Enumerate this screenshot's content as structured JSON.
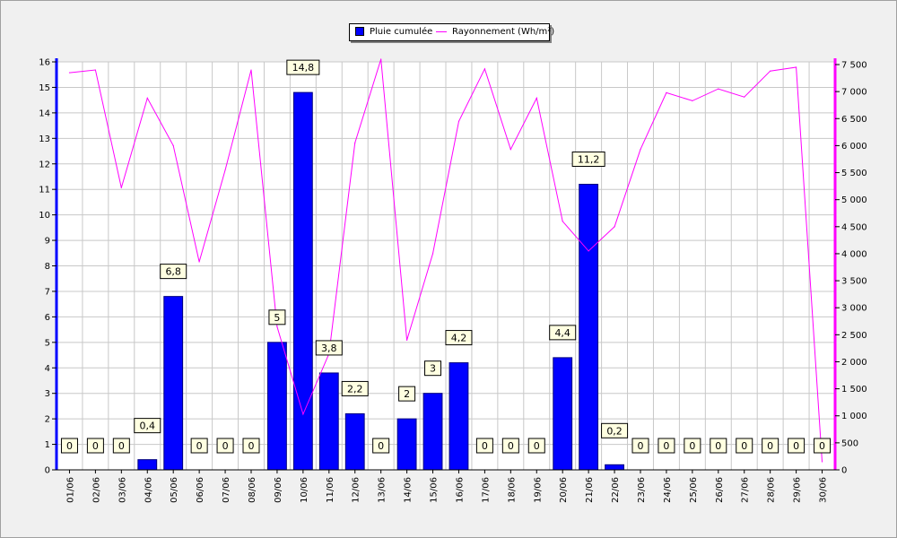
{
  "chart_data": {
    "type": "bar",
    "categories": [
      "01/06",
      "02/06",
      "03/06",
      "04/06",
      "05/06",
      "06/06",
      "07/06",
      "08/06",
      "09/06",
      "10/06",
      "11/06",
      "12/06",
      "13/06",
      "14/06",
      "15/06",
      "16/06",
      "17/06",
      "18/06",
      "19/06",
      "20/06",
      "21/06",
      "22/06",
      "23/06",
      "24/06",
      "25/06",
      "26/06",
      "27/06",
      "28/06",
      "29/06",
      "30/06"
    ],
    "series": [
      {
        "name": "Pluie cumulée",
        "type": "bar",
        "axis": "left",
        "color": "#0000ff",
        "values": [
          0,
          0,
          0,
          0.4,
          6.8,
          0,
          0,
          0,
          5,
          14.8,
          3.8,
          2.2,
          0,
          2,
          3,
          4.2,
          0,
          0,
          0,
          4.4,
          11.2,
          0.2,
          0,
          0,
          0,
          0,
          0,
          0,
          0,
          0
        ],
        "labels": [
          "0",
          "0",
          "0",
          "0,4",
          "6,8",
          "0",
          "0",
          "0",
          "5",
          "14,8",
          "3,8",
          "2,2",
          "0",
          "2",
          "3",
          "4,2",
          "0",
          "0",
          "0",
          "4,4",
          "11,2",
          "0,2",
          "0",
          "0",
          "0",
          "0",
          "0",
          "0",
          "0",
          "0"
        ]
      },
      {
        "name": "Rayonnement (Wh/m²)",
        "type": "line",
        "axis": "right",
        "color": "#ff00ff",
        "values": [
          7350,
          7400,
          5220,
          6880,
          6000,
          3850,
          5550,
          7400,
          2650,
          1030,
          2150,
          6050,
          7600,
          2400,
          4000,
          6450,
          7420,
          5930,
          6880,
          4600,
          4050,
          4500,
          5930,
          6980,
          6830,
          7050,
          6900,
          7380,
          7450,
          150
        ]
      }
    ],
    "y_left": {
      "range": [
        0,
        16
      ],
      "ticks": [
        0,
        1,
        2,
        3,
        4,
        5,
        6,
        7,
        8,
        9,
        10,
        11,
        12,
        13,
        14,
        15,
        16
      ],
      "tick_labels": [
        "0",
        "1",
        "2",
        "3",
        "4",
        "5",
        "6",
        "7",
        "8",
        "9",
        "10",
        "11",
        "12",
        "13",
        "14",
        "15",
        "16"
      ]
    },
    "y_right": {
      "range": [
        0,
        7550
      ],
      "ticks": [
        0,
        500,
        1000,
        1500,
        2000,
        2500,
        3000,
        3500,
        4000,
        4500,
        5000,
        5500,
        6000,
        6500,
        7000,
        7500
      ],
      "tick_labels": [
        "0",
        "500",
        "1 000",
        "1 500",
        "2 000",
        "2 500",
        "3 000",
        "3 500",
        "4 000",
        "4 500",
        "5 000",
        "5 500",
        "6 000",
        "6 500",
        "7 000",
        "7 500"
      ]
    },
    "grid": true,
    "legend_position": "top-center",
    "title": "",
    "xlabel": "",
    "ylabel": ""
  }
}
